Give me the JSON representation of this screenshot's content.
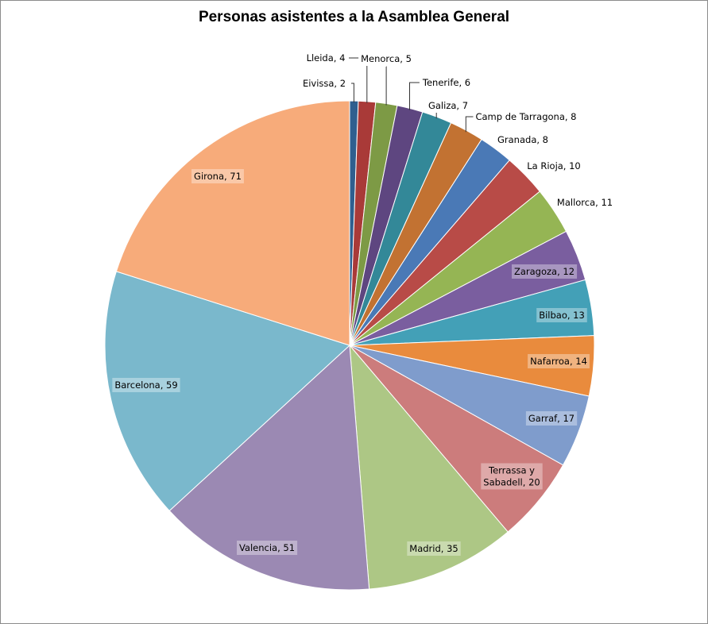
{
  "chart_data": {
    "type": "pie",
    "title": "Personas asistentes a la Asamblea General",
    "slices": [
      {
        "name": "Eivissa",
        "value": 2,
        "label": "Eivissa, 2",
        "color": "#2f5f8f"
      },
      {
        "name": "Lleida",
        "value": 4,
        "label": "Lleida, 4",
        "color": "#a93a38"
      },
      {
        "name": "Menorca",
        "value": 5,
        "label": "Menorca, 5",
        "color": "#7d9a45"
      },
      {
        "name": "Tenerife",
        "value": 6,
        "label": "Tenerife,  6",
        "color": "#5e4680"
      },
      {
        "name": "Galiza",
        "value": 7,
        "label": "Galiza, 7",
        "color": "#338898"
      },
      {
        "name": "Camp de Tarragona",
        "value": 8,
        "label": "Camp de Tarragona, 8",
        "color": "#c27232"
      },
      {
        "name": "Granada",
        "value": 8,
        "label": "Granada, 8",
        "color": "#4a79b6"
      },
      {
        "name": "La Rioja",
        "value": 10,
        "label": "La Rioja, 10",
        "color": "#b84b47"
      },
      {
        "name": "Mallorca",
        "value": 11,
        "label": "Mallorca, 11",
        "color": "#95b554"
      },
      {
        "name": "Zaragoza",
        "value": 12,
        "label": "Zaragoza, 12",
        "color": "#7a5e9f"
      },
      {
        "name": "Bilbao",
        "value": 13,
        "label": "Bilbao, 13",
        "color": "#43a0b7"
      },
      {
        "name": "Nafarroa",
        "value": 14,
        "label": "Nafarroa, 14",
        "color": "#e98b3d"
      },
      {
        "name": "Garraf",
        "value": 17,
        "label": "Garraf, 17",
        "color": "#7f9ccc"
      },
      {
        "name": "Terrassa y Sabadell",
        "value": 20,
        "label": [
          "Terrassa y",
          "Sabadell, 20"
        ],
        "color": "#cc7c7c"
      },
      {
        "name": "Madrid",
        "value": 35,
        "label": "Madrid, 35",
        "color": "#adc785"
      },
      {
        "name": "Valencia",
        "value": 51,
        "label": "Valencia, 51",
        "color": "#9b89b3"
      },
      {
        "name": "Barcelona",
        "value": 59,
        "label": "Barcelona, 59",
        "color": "#7ab8cc"
      },
      {
        "name": "Girona",
        "value": 71,
        "label": "Girona, 71",
        "color": "#f7ab7a"
      }
    ]
  }
}
